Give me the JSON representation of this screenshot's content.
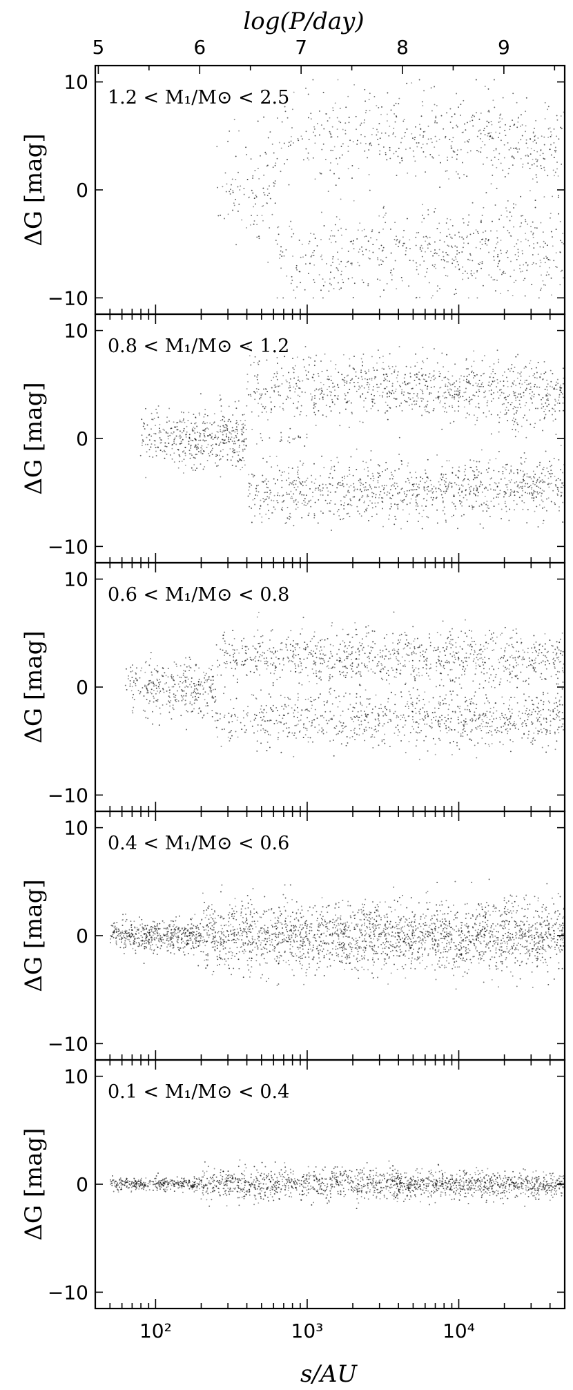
{
  "chart_data": {
    "type": "scatter",
    "layout": "5 vertically stacked panels sharing the x-axis",
    "x_axis": {
      "label": "s/AU",
      "scale": "log",
      "range": [
        40,
        50000
      ],
      "major_ticks": [
        100,
        1000,
        10000
      ],
      "major_tick_labels": [
        "10²",
        "10³",
        "10⁴"
      ]
    },
    "top_axis": {
      "label": "log(P/day)",
      "ticks": [
        5,
        6,
        7,
        8,
        9
      ],
      "tick_labels": [
        "5",
        "6",
        "7",
        "8",
        "9"
      ]
    },
    "y_axis": {
      "label": "ΔG [mag]",
      "range": [
        -11,
        11
      ],
      "ticks": [
        -10,
        0,
        10
      ],
      "tick_labels": [
        "−10",
        "0",
        "10"
      ]
    },
    "panels": [
      {
        "label": "1.2 < M₁/M⊙ < 2.5",
        "description": "sparse points; two diagonal branches at ΔG ≈ +5 and ≈ −6 for s ≳ 600 AU",
        "s_range": [
          150,
          50000
        ],
        "dG_extent": [
          -10,
          10
        ],
        "point_count_shown": 1200
      },
      {
        "label": "0.8 < M₁/M⊙ < 1.2",
        "description": "dense; branches at ΔG ≈ +5 and ≈ −5 peaking s ≈ 1000–3000 AU, narrow ridge at ΔG ≈ 0 near s ≈ 300 AU",
        "s_range": [
          70,
          50000
        ],
        "dG_extent": [
          -8,
          8
        ],
        "point_count_shown": 2400
      },
      {
        "label": "0.6 < M₁/M⊙ < 0.8",
        "description": "dense; branches at ΔG ≈ +3 and ≈ −3, peak s ≈ 500–3000 AU",
        "s_range": [
          60,
          50000
        ],
        "dG_extent": [
          -6,
          6
        ],
        "point_count_shown": 2200
      },
      {
        "label": "0.4 < M₁/M⊙ < 0.6",
        "description": "densest; broad band centered on ΔG ≈ 0 with width ≈ ±3, peak s ≈ 300–1000 AU",
        "s_range": [
          50,
          50000
        ],
        "dG_extent": [
          -5,
          5
        ],
        "point_count_shown": 2800
      },
      {
        "label": "0.1 < M₁/M⊙ < 0.4",
        "description": "narrow band centered on ΔG ≈ 0 with width ≈ ±1.5, peak s ≈ 300–1000 AU",
        "s_range": [
          50,
          50000
        ],
        "dG_extent": [
          -3,
          3
        ],
        "point_count_shown": 2000
      }
    ]
  }
}
